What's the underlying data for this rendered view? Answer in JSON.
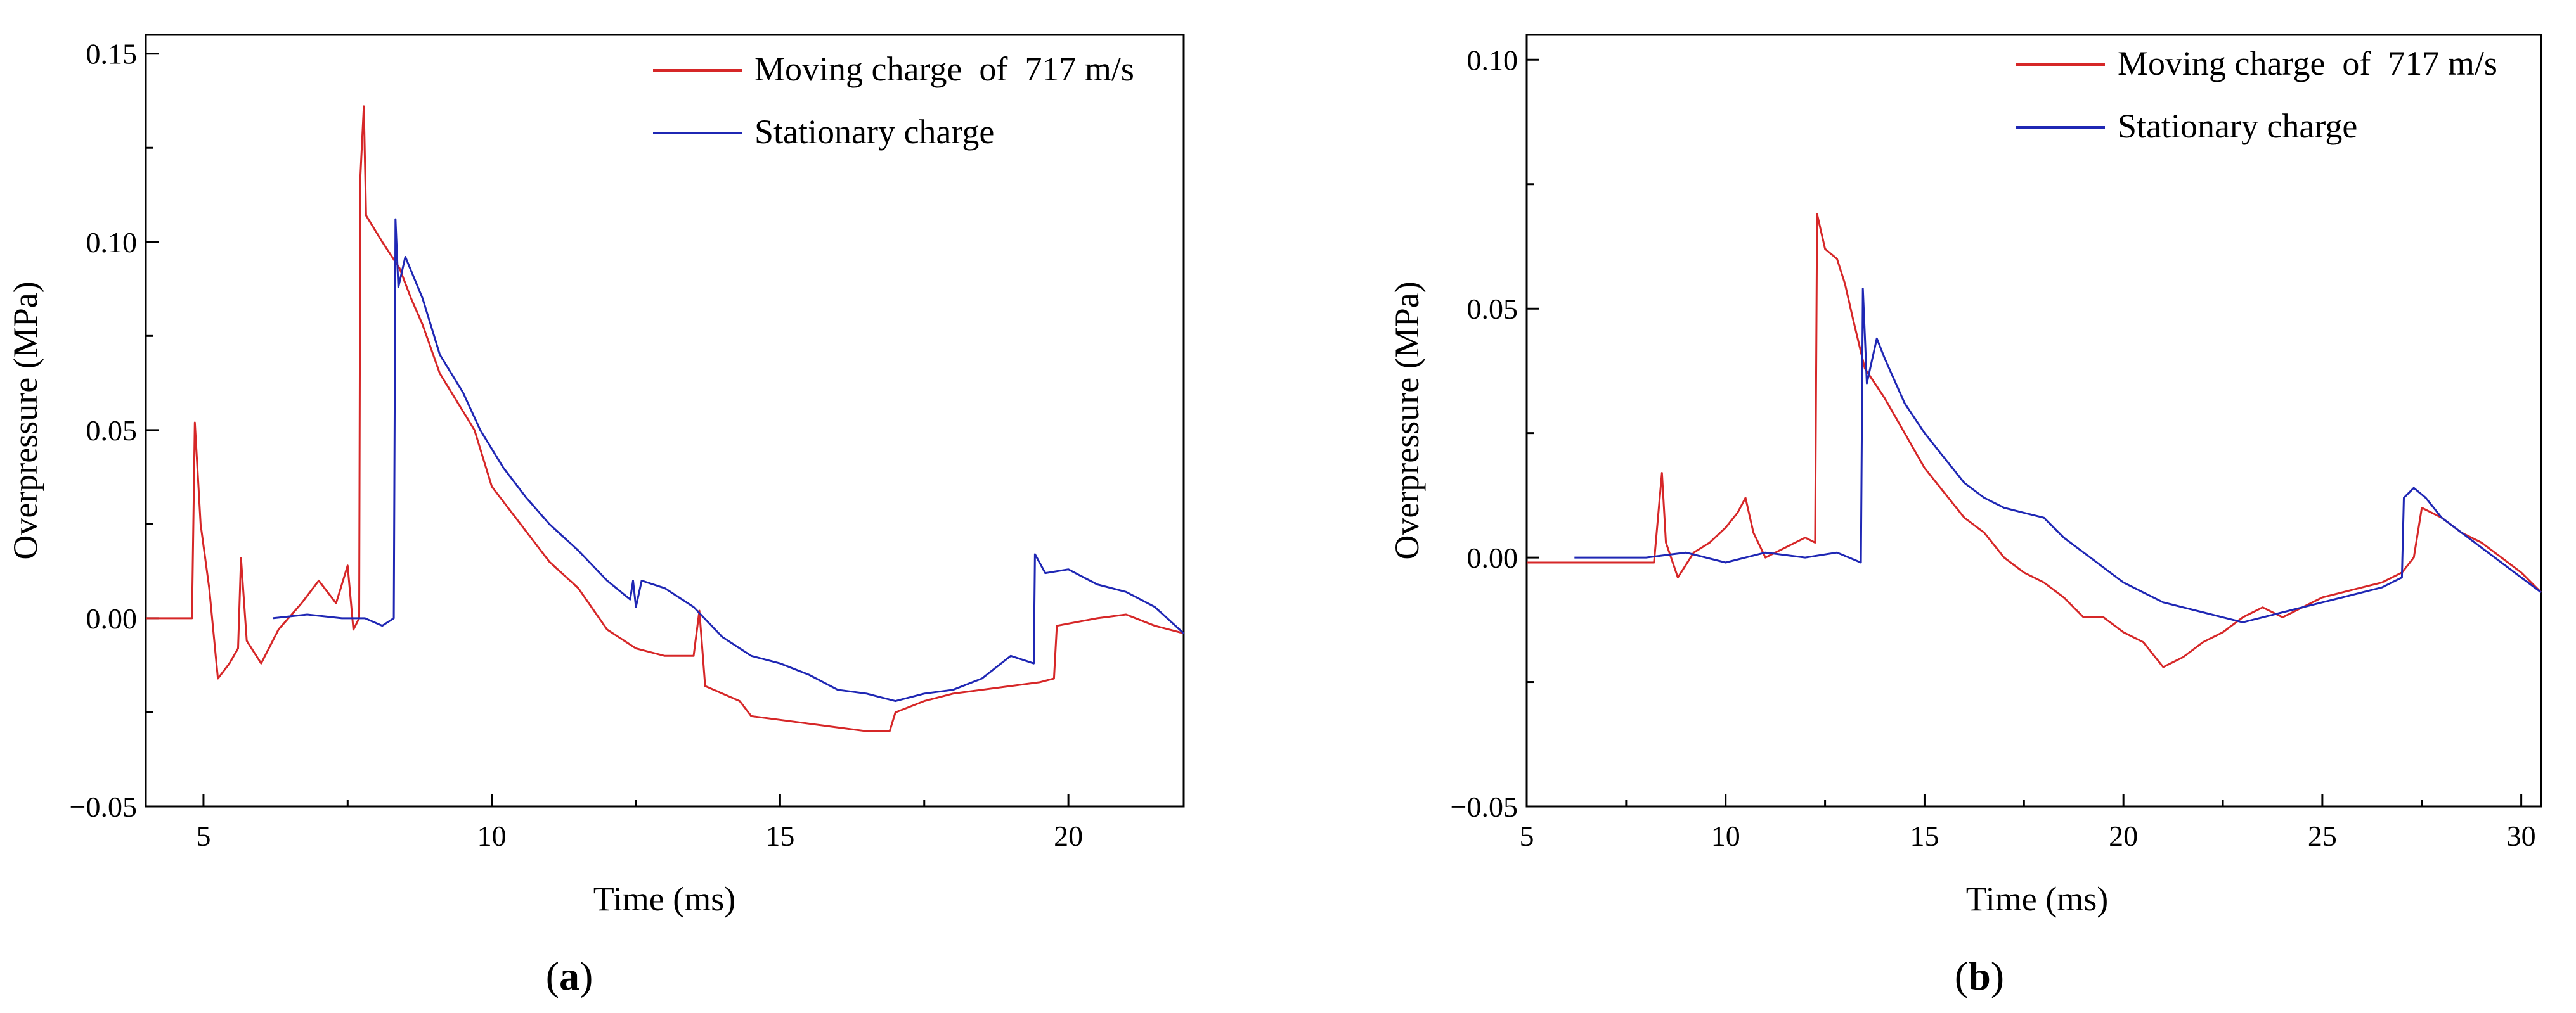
{
  "chart_data": [
    {
      "id": "a",
      "type": "line",
      "panel_label": "a",
      "xlabel": "Time (ms)",
      "ylabel": "Overpressure (MPa)",
      "xlim": [
        4,
        22
      ],
      "ylim": [
        -0.05,
        0.155
      ],
      "xticks": [
        5,
        10,
        15,
        20
      ],
      "xtick_labels": [
        "5",
        "10",
        "15",
        "20"
      ],
      "yticks": [
        -0.05,
        0.0,
        0.05,
        0.1,
        0.15
      ],
      "ytick_labels": [
        "−0.05",
        "0.00",
        "0.05",
        "0.10",
        "0.15"
      ],
      "legend_position": "top-right",
      "series": [
        {
          "name": "Moving charge  of  717 m/s",
          "color": "#d62728",
          "points": [
            [
              4.0,
              0.0
            ],
            [
              4.8,
              0.0
            ],
            [
              4.85,
              0.052
            ],
            [
              4.95,
              0.025
            ],
            [
              5.1,
              0.008
            ],
            [
              5.25,
              -0.016
            ],
            [
              5.45,
              -0.012
            ],
            [
              5.6,
              -0.008
            ],
            [
              5.65,
              0.016
            ],
            [
              5.75,
              -0.006
            ],
            [
              6.0,
              -0.012
            ],
            [
              6.3,
              -0.003
            ],
            [
              6.7,
              0.004
            ],
            [
              7.0,
              0.01
            ],
            [
              7.3,
              0.004
            ],
            [
              7.5,
              0.014
            ],
            [
              7.6,
              -0.003
            ],
            [
              7.7,
              0.0
            ],
            [
              7.72,
              0.117
            ],
            [
              7.78,
              0.136
            ],
            [
              7.82,
              0.107
            ],
            [
              8.1,
              0.1
            ],
            [
              8.4,
              0.093
            ],
            [
              8.6,
              0.085
            ],
            [
              8.8,
              0.078
            ],
            [
              9.1,
              0.065
            ],
            [
              9.5,
              0.055
            ],
            [
              9.7,
              0.05
            ],
            [
              10.0,
              0.035
            ],
            [
              10.5,
              0.025
            ],
            [
              11.0,
              0.015
            ],
            [
              11.5,
              0.008
            ],
            [
              12.0,
              -0.003
            ],
            [
              12.5,
              -0.008
            ],
            [
              13.0,
              -0.01
            ],
            [
              13.5,
              -0.01
            ],
            [
              13.6,
              0.002
            ],
            [
              13.7,
              -0.018
            ],
            [
              14.3,
              -0.022
            ],
            [
              14.5,
              -0.026
            ],
            [
              15.0,
              -0.027
            ],
            [
              15.5,
              -0.028
            ],
            [
              16.0,
              -0.029
            ],
            [
              16.5,
              -0.03
            ],
            [
              16.9,
              -0.03
            ],
            [
              17.0,
              -0.025
            ],
            [
              17.5,
              -0.022
            ],
            [
              18.0,
              -0.02
            ],
            [
              18.5,
              -0.019
            ],
            [
              19.0,
              -0.018
            ],
            [
              19.5,
              -0.017
            ],
            [
              19.75,
              -0.016
            ],
            [
              19.8,
              -0.002
            ],
            [
              20.5,
              0.0
            ],
            [
              21.0,
              0.001
            ],
            [
              21.5,
              -0.002
            ],
            [
              22.0,
              -0.004
            ]
          ]
        },
        {
          "name": "Stationary charge",
          "color": "#1f27b4",
          "points": [
            [
              6.2,
              0.0
            ],
            [
              6.8,
              0.001
            ],
            [
              7.4,
              0.0
            ],
            [
              7.8,
              0.0
            ],
            [
              8.1,
              -0.002
            ],
            [
              8.3,
              0.0
            ],
            [
              8.33,
              0.106
            ],
            [
              8.38,
              0.088
            ],
            [
              8.5,
              0.096
            ],
            [
              8.8,
              0.085
            ],
            [
              9.1,
              0.07
            ],
            [
              9.5,
              0.06
            ],
            [
              9.8,
              0.05
            ],
            [
              10.2,
              0.04
            ],
            [
              10.6,
              0.032
            ],
            [
              11.0,
              0.025
            ],
            [
              11.5,
              0.018
            ],
            [
              12.0,
              0.01
            ],
            [
              12.4,
              0.005
            ],
            [
              12.45,
              0.01
            ],
            [
              12.5,
              0.003
            ],
            [
              12.6,
              0.01
            ],
            [
              13.0,
              0.008
            ],
            [
              13.5,
              0.003
            ],
            [
              14.0,
              -0.005
            ],
            [
              14.5,
              -0.01
            ],
            [
              15.0,
              -0.012
            ],
            [
              15.5,
              -0.015
            ],
            [
              16.0,
              -0.019
            ],
            [
              16.5,
              -0.02
            ],
            [
              17.0,
              -0.022
            ],
            [
              17.5,
              -0.02
            ],
            [
              18.0,
              -0.019
            ],
            [
              18.5,
              -0.016
            ],
            [
              19.0,
              -0.01
            ],
            [
              19.4,
              -0.012
            ],
            [
              19.42,
              0.017
            ],
            [
              19.6,
              0.012
            ],
            [
              20.0,
              0.013
            ],
            [
              20.5,
              0.009
            ],
            [
              21.0,
              0.007
            ],
            [
              21.5,
              0.003
            ],
            [
              22.0,
              -0.004
            ]
          ]
        }
      ]
    },
    {
      "id": "b",
      "type": "line",
      "panel_label": "b",
      "xlabel": "Time (ms)",
      "ylabel": "Overpressure (MPa)",
      "xlim": [
        5,
        30.5
      ],
      "ylim": [
        -0.05,
        0.105
      ],
      "xticks": [
        5,
        10,
        15,
        20,
        25,
        30
      ],
      "xtick_labels": [
        "5",
        "10",
        "15",
        "20",
        "25",
        "30"
      ],
      "yticks": [
        -0.05,
        0.0,
        0.05,
        0.1
      ],
      "ytick_labels": [
        "−0.05",
        "0.00",
        "0.05",
        "0.10"
      ],
      "legend_position": "top-right",
      "series": [
        {
          "name": "Moving charge  of  717 m/s",
          "color": "#d62728",
          "points": [
            [
              5.0,
              -0.001
            ],
            [
              7.5,
              -0.001
            ],
            [
              8.2,
              -0.001
            ],
            [
              8.4,
              0.017
            ],
            [
              8.5,
              0.003
            ],
            [
              8.8,
              -0.004
            ],
            [
              9.2,
              0.001
            ],
            [
              9.6,
              0.003
            ],
            [
              10.0,
              0.006
            ],
            [
              10.3,
              0.009
            ],
            [
              10.5,
              0.012
            ],
            [
              10.7,
              0.005
            ],
            [
              11.0,
              0.0
            ],
            [
              11.5,
              0.002
            ],
            [
              12.0,
              0.004
            ],
            [
              12.25,
              0.003
            ],
            [
              12.3,
              0.069
            ],
            [
              12.5,
              0.062
            ],
            [
              12.8,
              0.06
            ],
            [
              13.0,
              0.055
            ],
            [
              13.2,
              0.048
            ],
            [
              13.5,
              0.038
            ],
            [
              14.0,
              0.032
            ],
            [
              14.5,
              0.025
            ],
            [
              15.0,
              0.018
            ],
            [
              15.5,
              0.013
            ],
            [
              16.0,
              0.008
            ],
            [
              16.5,
              0.005
            ],
            [
              17.0,
              0.0
            ],
            [
              17.5,
              -0.003
            ],
            [
              18.0,
              -0.005
            ],
            [
              18.5,
              -0.008
            ],
            [
              19.0,
              -0.012
            ],
            [
              19.5,
              -0.012
            ],
            [
              20.0,
              -0.015
            ],
            [
              20.5,
              -0.017
            ],
            [
              21.0,
              -0.022
            ],
            [
              21.5,
              -0.02
            ],
            [
              22.0,
              -0.017
            ],
            [
              22.5,
              -0.015
            ],
            [
              23.0,
              -0.012
            ],
            [
              23.5,
              -0.01
            ],
            [
              24.0,
              -0.012
            ],
            [
              24.5,
              -0.01
            ],
            [
              25.0,
              -0.008
            ],
            [
              25.5,
              -0.007
            ],
            [
              26.0,
              -0.006
            ],
            [
              26.5,
              -0.005
            ],
            [
              27.0,
              -0.003
            ],
            [
              27.3,
              0.0
            ],
            [
              27.5,
              0.01
            ],
            [
              28.0,
              0.008
            ],
            [
              28.5,
              0.005
            ],
            [
              29.0,
              0.003
            ],
            [
              29.5,
              0.0
            ],
            [
              30.0,
              -0.003
            ],
            [
              30.5,
              -0.007
            ]
          ]
        },
        {
          "name": "Stationary charge",
          "color": "#1f27b4",
          "points": [
            [
              6.2,
              0.0
            ],
            [
              8.0,
              0.0
            ],
            [
              9.0,
              0.001
            ],
            [
              10.0,
              -0.001
            ],
            [
              11.0,
              0.001
            ],
            [
              12.0,
              0.0
            ],
            [
              12.8,
              0.001
            ],
            [
              13.4,
              -0.001
            ],
            [
              13.45,
              0.054
            ],
            [
              13.55,
              0.035
            ],
            [
              13.8,
              0.044
            ],
            [
              14.0,
              0.04
            ],
            [
              14.5,
              0.031
            ],
            [
              15.0,
              0.025
            ],
            [
              15.5,
              0.02
            ],
            [
              16.0,
              0.015
            ],
            [
              16.5,
              0.012
            ],
            [
              17.0,
              0.01
            ],
            [
              17.5,
              0.009
            ],
            [
              18.0,
              0.008
            ],
            [
              18.5,
              0.004
            ],
            [
              19.0,
              0.001
            ],
            [
              19.5,
              -0.002
            ],
            [
              20.0,
              -0.005
            ],
            [
              20.5,
              -0.007
            ],
            [
              21.0,
              -0.009
            ],
            [
              21.5,
              -0.01
            ],
            [
              22.0,
              -0.011
            ],
            [
              22.5,
              -0.012
            ],
            [
              23.0,
              -0.013
            ],
            [
              23.5,
              -0.012
            ],
            [
              24.0,
              -0.011
            ],
            [
              24.5,
              -0.01
            ],
            [
              25.0,
              -0.009
            ],
            [
              25.5,
              -0.008
            ],
            [
              26.0,
              -0.007
            ],
            [
              26.5,
              -0.006
            ],
            [
              27.0,
              -0.004
            ],
            [
              27.05,
              0.012
            ],
            [
              27.3,
              0.014
            ],
            [
              27.6,
              0.012
            ],
            [
              28.0,
              0.008
            ],
            [
              28.5,
              0.005
            ],
            [
              29.0,
              0.002
            ],
            [
              29.5,
              -0.001
            ],
            [
              30.0,
              -0.004
            ],
            [
              30.5,
              -0.007
            ]
          ]
        }
      ]
    }
  ]
}
